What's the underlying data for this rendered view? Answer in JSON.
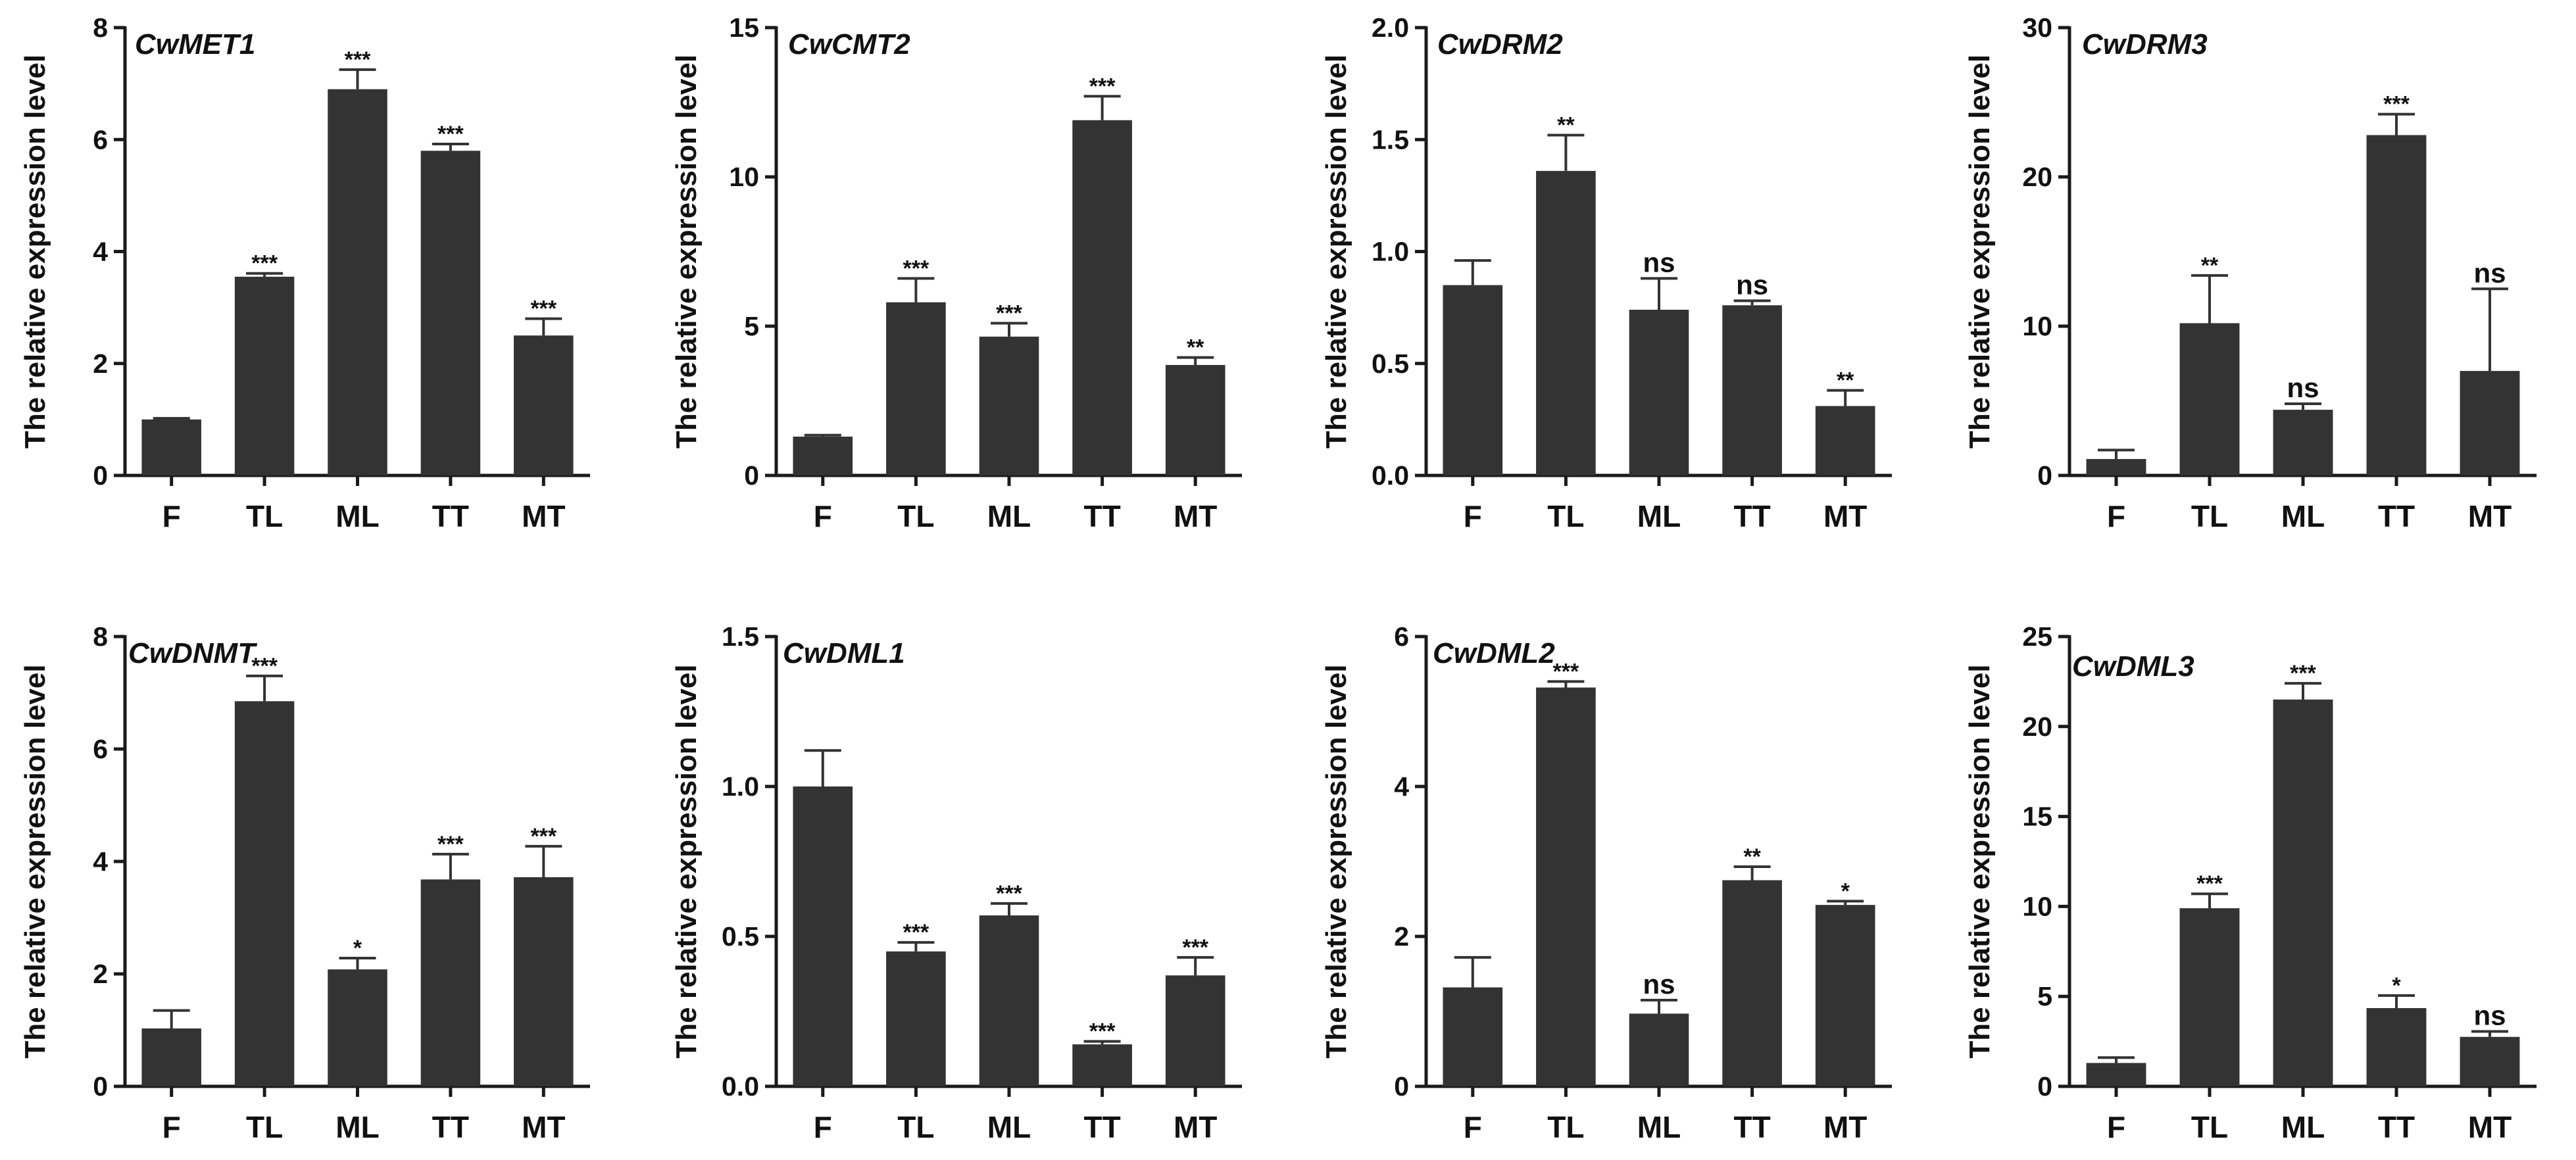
{
  "y_axis_label": "The relative expression level",
  "chart_data": [
    {
      "type": "bar",
      "title": "CwMET1",
      "ylabel": "The relative expression level",
      "categories": [
        "F",
        "TL",
        "ML",
        "TT",
        "MT"
      ],
      "values": [
        1.0,
        3.55,
        6.9,
        5.8,
        2.5
      ],
      "errors": [
        0.02,
        0.06,
        0.35,
        0.12,
        0.3
      ],
      "significance": [
        "",
        "***",
        "***",
        "***",
        "***"
      ],
      "ylim": [
        0,
        8
      ],
      "yticks": [
        "0",
        "2",
        "4",
        "6",
        "8"
      ]
    },
    {
      "type": "bar",
      "title": "CwCMT2",
      "ylabel": "The relative expression level",
      "categories": [
        "F",
        "TL",
        "ML",
        "TT",
        "MT"
      ],
      "values": [
        1.3,
        5.8,
        4.65,
        11.9,
        3.7
      ],
      "errors": [
        0.05,
        0.8,
        0.45,
        0.8,
        0.25
      ],
      "significance": [
        "",
        "***",
        "***",
        "***",
        "**"
      ],
      "ylim": [
        0,
        15
      ],
      "yticks": [
        "0",
        "5",
        "10",
        "15"
      ]
    },
    {
      "type": "bar",
      "title": "CwDRM2",
      "ylabel": "The relative expression level",
      "categories": [
        "F",
        "TL",
        "ML",
        "TT",
        "MT"
      ],
      "values": [
        0.85,
        1.36,
        0.74,
        0.76,
        0.31
      ],
      "errors": [
        0.11,
        0.16,
        0.14,
        0.02,
        0.07
      ],
      "significance": [
        "",
        "**",
        "ns",
        "ns",
        "**"
      ],
      "ylim": [
        0,
        2
      ],
      "yticks": [
        "0.0",
        "0.5",
        "1.0",
        "1.5",
        "2.0"
      ]
    },
    {
      "type": "bar",
      "title": "CwDRM3",
      "ylabel": "The relative expression level",
      "categories": [
        "F",
        "TL",
        "ML",
        "TT",
        "MT"
      ],
      "values": [
        1.1,
        10.2,
        4.4,
        22.8,
        7.0
      ],
      "errors": [
        0.6,
        3.2,
        0.4,
        1.4,
        5.5
      ],
      "significance": [
        "",
        "**",
        "ns",
        "***",
        "ns"
      ],
      "ylim": [
        0,
        30
      ],
      "yticks": [
        "0",
        "10",
        "20",
        "30"
      ]
    },
    {
      "type": "bar",
      "title": "CwDNMT",
      "ylabel": "The relative expression level",
      "categories": [
        "F",
        "TL",
        "ML",
        "TT",
        "MT"
      ],
      "values": [
        1.03,
        6.85,
        2.08,
        3.68,
        3.72
      ],
      "errors": [
        0.32,
        0.45,
        0.2,
        0.45,
        0.55
      ],
      "significance": [
        "",
        "***",
        "*",
        "***",
        "***"
      ],
      "ylim": [
        0,
        8
      ],
      "yticks": [
        "0",
        "2",
        "4",
        "6",
        "8"
      ]
    },
    {
      "type": "bar",
      "title": "CwDML1",
      "ylabel": "The relative expression level",
      "categories": [
        "F",
        "TL",
        "ML",
        "TT",
        "MT"
      ],
      "values": [
        1.0,
        0.45,
        0.57,
        0.14,
        0.37
      ],
      "errors": [
        0.12,
        0.03,
        0.04,
        0.01,
        0.06
      ],
      "significance": [
        "",
        "***",
        "***",
        "***",
        "***"
      ],
      "ylim": [
        0,
        1.5
      ],
      "yticks": [
        "0.0",
        "0.5",
        "1.0",
        "1.5"
      ]
    },
    {
      "type": "bar",
      "title": "CwDML2",
      "ylabel": "The relative expression level",
      "categories": [
        "F",
        "TL",
        "ML",
        "TT",
        "MT"
      ],
      "values": [
        1.32,
        5.32,
        0.97,
        2.75,
        2.42
      ],
      "errors": [
        0.4,
        0.08,
        0.18,
        0.18,
        0.05
      ],
      "significance": [
        "",
        "***",
        "ns",
        "**",
        "*"
      ],
      "ylim": [
        0,
        6
      ],
      "yticks": [
        "0",
        "2",
        "4",
        "6"
      ]
    },
    {
      "type": "bar",
      "title": "CwDML3",
      "ylabel": "The relative expression level",
      "categories": [
        "F",
        "TL",
        "ML",
        "TT",
        "MT"
      ],
      "values": [
        1.3,
        9.9,
        21.5,
        4.35,
        2.75
      ],
      "errors": [
        0.3,
        0.8,
        0.9,
        0.7,
        0.3
      ],
      "significance": [
        "",
        "***",
        "***",
        "*",
        "ns"
      ],
      "ylim": [
        0,
        25
      ],
      "yticks": [
        "0",
        "5",
        "10",
        "15",
        "20",
        "25"
      ]
    }
  ]
}
